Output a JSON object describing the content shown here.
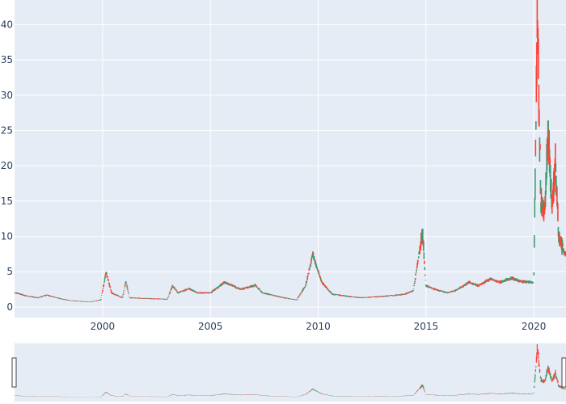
{
  "chart_data": {
    "type": "candlestick",
    "title": "",
    "xlabel": "",
    "ylabel": "",
    "x_range": [
      "1995-12-01",
      "2021-06-30"
    ],
    "ylim": [
      -1.5,
      43.5
    ],
    "x_ticks": [
      {
        "date": "2000-01-01",
        "label": "2000"
      },
      {
        "date": "2005-01-01",
        "label": "2005"
      },
      {
        "date": "2010-01-01",
        "label": "2010"
      },
      {
        "date": "2015-01-01",
        "label": "2015"
      },
      {
        "date": "2020-01-01",
        "label": "2020"
      }
    ],
    "y_ticks": [
      0,
      5,
      10,
      15,
      20,
      25,
      30,
      35,
      40
    ],
    "grid": true,
    "rangeslider": true,
    "colors": {
      "increasing": "#3D9970",
      "decreasing": "#FF4136",
      "plot_bg": "#E5ECF6",
      "grid": "#FFFFFF"
    },
    "series": [
      {
        "points": [
          [
            "1996-01-01",
            2.0
          ],
          [
            "1996-06-01",
            1.6
          ],
          [
            "1997-01-01",
            1.3
          ],
          [
            "1997-06-01",
            1.7
          ],
          [
            "1998-01-01",
            1.2
          ],
          [
            "1998-07-01",
            0.9
          ],
          [
            "1999-01-01",
            0.8
          ],
          [
            "1999-06-01",
            0.7
          ],
          [
            "1999-12-01",
            1.0
          ],
          [
            "2000-03-01",
            4.9
          ],
          [
            "2000-06-01",
            2.0
          ],
          [
            "2000-12-01",
            1.3
          ],
          [
            "2001-02-01",
            3.6
          ],
          [
            "2001-04-01",
            1.3
          ],
          [
            "2002-01-01",
            1.2
          ],
          [
            "2003-01-01",
            1.1
          ],
          [
            "2003-04-01",
            3.0
          ],
          [
            "2003-07-01",
            2.0
          ],
          [
            "2004-01-01",
            2.6
          ],
          [
            "2004-06-01",
            2.0
          ],
          [
            "2005-01-01",
            2.0
          ],
          [
            "2005-09-01",
            3.5
          ],
          [
            "2006-06-01",
            2.5
          ],
          [
            "2007-02-01",
            3.1
          ],
          [
            "2007-06-01",
            2.0
          ],
          [
            "2008-06-01",
            1.3
          ],
          [
            "2009-01-01",
            1.0
          ],
          [
            "2009-06-01",
            3.0
          ],
          [
            "2009-10-01",
            7.4
          ],
          [
            "2010-03-01",
            3.5
          ],
          [
            "2010-09-01",
            1.8
          ],
          [
            "2011-06-01",
            1.5
          ],
          [
            "2012-01-01",
            1.3
          ],
          [
            "2013-01-01",
            1.5
          ],
          [
            "2014-01-01",
            1.8
          ],
          [
            "2014-06-01",
            2.3
          ],
          [
            "2014-11-01",
            10.6
          ],
          [
            "2015-01-01",
            3.0
          ],
          [
            "2015-06-01",
            2.5
          ],
          [
            "2016-01-01",
            2.0
          ],
          [
            "2016-06-01",
            2.4
          ],
          [
            "2017-01-01",
            3.5
          ],
          [
            "2017-06-01",
            3.0
          ],
          [
            "2018-01-01",
            4.0
          ],
          [
            "2018-06-01",
            3.5
          ],
          [
            "2019-01-01",
            4.1
          ],
          [
            "2019-06-01",
            3.6
          ],
          [
            "2020-01-01",
            3.5
          ],
          [
            "2020-03-01",
            41.5
          ],
          [
            "2020-05-01",
            15.0
          ],
          [
            "2020-07-01",
            13.0
          ],
          [
            "2020-09-01",
            25.3
          ],
          [
            "2020-11-01",
            14.0
          ],
          [
            "2021-01-01",
            20.5
          ],
          [
            "2021-03-01",
            10.0
          ],
          [
            "2021-06-01",
            7.5
          ]
        ]
      }
    ]
  }
}
